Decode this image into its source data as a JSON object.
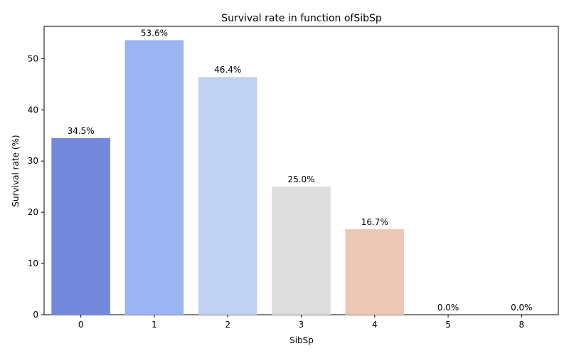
{
  "chart_data": {
    "type": "bar",
    "title": "Survival rate in function ofSibSp",
    "xlabel": "SibSp",
    "ylabel": "Survival rate (%)",
    "categories": [
      "0",
      "1",
      "2",
      "3",
      "4",
      "5",
      "8"
    ],
    "values": [
      34.5,
      53.6,
      46.4,
      25.0,
      16.7,
      0.0,
      0.0
    ],
    "data_labels": [
      "34.5%",
      "53.6%",
      "46.4%",
      "25.0%",
      "16.7%",
      "0.0%",
      "0.0%"
    ],
    "colors": [
      "#7489dc",
      "#9bb5f2",
      "#c0d1f1",
      "#dddddd",
      "#edc7b5",
      "#e4a58a",
      "#d87760"
    ],
    "ylim": [
      0,
      56.3
    ],
    "yticks": [
      0,
      10,
      20,
      30,
      40,
      50
    ],
    "grid": false,
    "legend": "none"
  }
}
